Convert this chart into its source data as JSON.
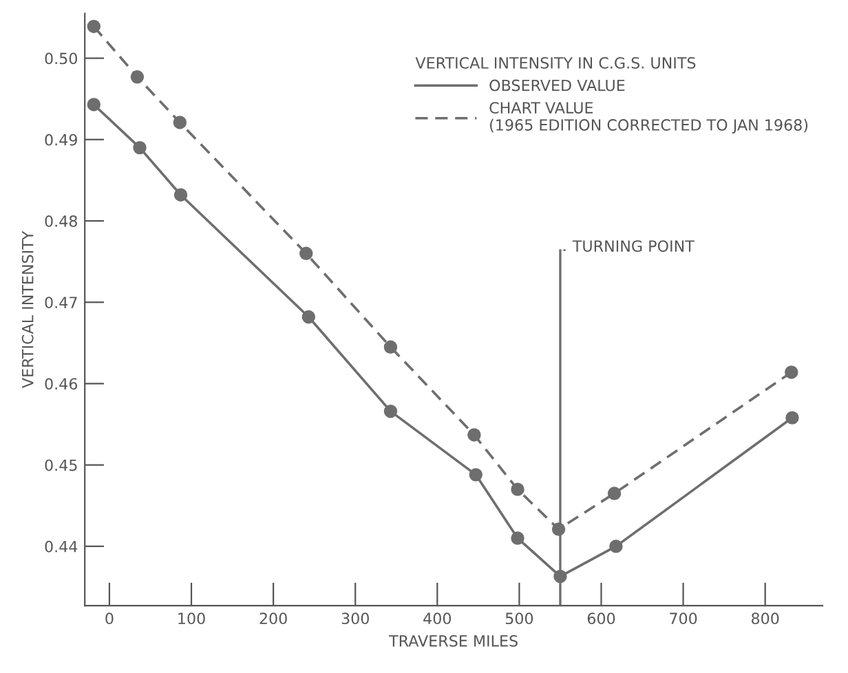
{
  "chart_data": {
    "type": "line",
    "xlabel": "TRAVERSE MILES",
    "ylabel": "VERTICAL INTENSITY",
    "legend_title": "VERTICAL INTENSITY IN C.G.S. UNITS",
    "legend": "top right",
    "marker": "circle",
    "grid": false,
    "series": [
      {
        "name": "OBSERVED VALUE",
        "color": "#6e6e6e",
        "line_style": "solid",
        "x": [
          -19,
          37,
          87,
          243,
          343,
          447,
          498,
          550,
          618,
          833
        ],
        "values": [
          0.4943,
          0.489,
          0.4832,
          0.4682,
          0.4566,
          0.4488,
          0.441,
          0.4363,
          0.44,
          0.4558
        ]
      },
      {
        "name": "CHART VALUE\n(1965 EDITION CORRECTED TO JAN 1968)",
        "color": "#6e6e6e",
        "line_style": "dashed",
        "x": [
          -19,
          34,
          86,
          240,
          343,
          445,
          498,
          548,
          616,
          832
        ],
        "values": [
          0.5039,
          0.4977,
          0.4921,
          0.476,
          0.4645,
          0.4537,
          0.447,
          0.4421,
          0.4465,
          0.4614
        ]
      }
    ],
    "ref_lines": [
      {
        "axis": "x",
        "value": 550,
        "label": "TURNING POINT",
        "color": "#6e6e6e"
      }
    ],
    "xlim": [
      -30,
      870
    ],
    "xticks": [
      0,
      100,
      200,
      300,
      400,
      500,
      600,
      700,
      800
    ],
    "ylim": [
      0.4327,
      0.5055
    ],
    "yticks": [
      {
        "value": 0.44,
        "label": "0.44"
      },
      {
        "value": 0.45,
        "label": "0.45"
      },
      {
        "value": 0.46,
        "label": "0.46"
      },
      {
        "value": 0.47,
        "label": "0.47"
      },
      {
        "value": 0.48,
        "label": "0.48"
      },
      {
        "value": 0.49,
        "label": "0.49"
      },
      {
        "value": 0.5,
        "label": "0.50"
      }
    ]
  }
}
